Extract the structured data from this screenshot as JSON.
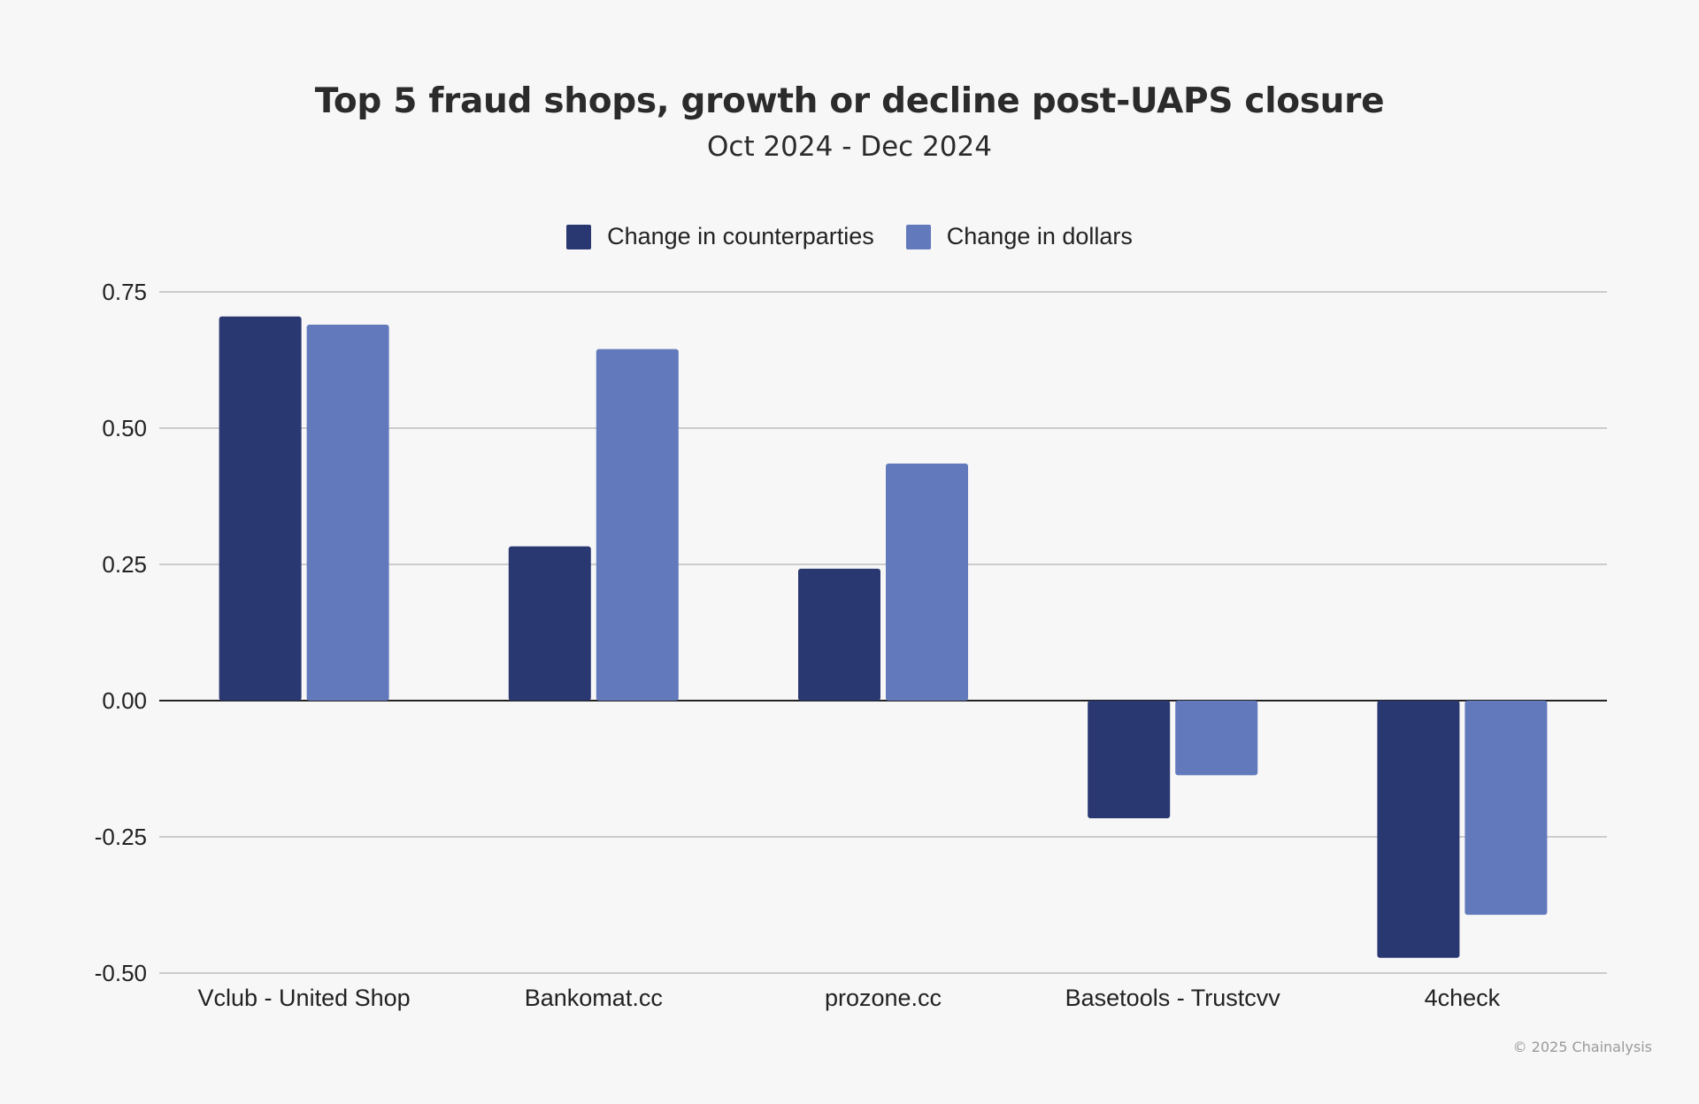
{
  "chart_data": {
    "type": "bar",
    "title": "Top 5 fraud shops, growth or decline post-UAPS closure",
    "subtitle": "Oct 2024 - Dec 2024",
    "categories": [
      "Vclub - United Shop",
      "Bankomat.cc",
      "prozone.cc",
      "Basetools - Trustcvv",
      "4check"
    ],
    "series": [
      {
        "name": "Change in counterparties",
        "color": "#2a3872",
        "values": [
          0.705,
          0.283,
          0.242,
          -0.216,
          -0.472
        ]
      },
      {
        "name": "Change in dollars",
        "color": "#6279bc",
        "values": [
          0.69,
          0.645,
          0.435,
          -0.137,
          -0.393
        ]
      }
    ],
    "y_ticks": [
      0.75,
      0.5,
      0.25,
      0.0,
      -0.25,
      -0.5
    ],
    "y_tick_labels": [
      "0.75",
      "0.50",
      "0.25",
      "0.00",
      "-0.25",
      "-0.50"
    ],
    "ylim": [
      -0.5,
      0.75
    ],
    "xlabel": "",
    "ylabel": "",
    "grid": true,
    "legend_position": "top-center"
  },
  "footer": {
    "copyright": "© 2025 Chainalysis"
  }
}
